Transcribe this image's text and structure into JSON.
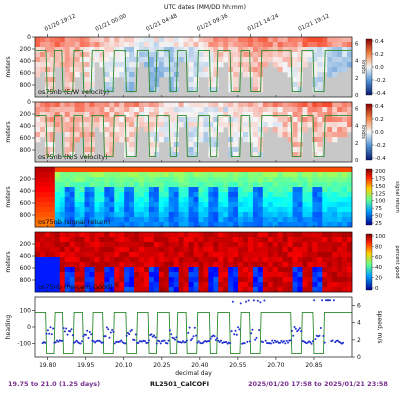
{
  "header": {
    "utc_label": "UTC dates (MM/DD hh:mm)"
  },
  "top_ticks": [
    "01/20 19:12",
    "01/21 00:00",
    "01/21 04:48",
    "01/21 09:36",
    "01/21 14:24",
    "01/21 19:12"
  ],
  "bottom_ticks": [
    "19.80",
    "19.95",
    "20.10",
    "20.25",
    "20.40",
    "20.55",
    "20.70",
    "20.85"
  ],
  "xlabel": "decimal day",
  "footer": {
    "left": "19.75 to 21.0 (1.25 days)",
    "center": "RL2501_CalCOFI",
    "right": "2025/01/20 17:58 to 2025/01/21 23:58"
  },
  "colors": {
    "speed_line": "#2a8a2a",
    "heading": "#1f2fd0",
    "footer_left": "#7a2f8f",
    "footer_right": "#7a2f8f",
    "no_data": "#c8c8c8"
  },
  "chart_data": [
    {
      "type": "heatmap",
      "panel_label": "os75nb (E/W velocity)",
      "ylabel": "meters",
      "y_ticks": [
        "0",
        "200",
        "400",
        "600",
        "800"
      ],
      "ylim": [
        1000,
        0
      ],
      "xlim": [
        19.75,
        21.0
      ],
      "colorbar": {
        "ticks": [
          "0.4",
          "0.2",
          "0.0",
          "-0.2",
          "-0.4"
        ],
        "range": [
          -0.4,
          0.4
        ],
        "colormap": "red-white-blue"
      },
      "overlay_axis": {
        "ticks": [
          "6",
          "4",
          "2",
          "0"
        ],
        "label": "knots"
      }
    },
    {
      "type": "heatmap",
      "panel_label": "os75nb (N/S velocity)",
      "ylabel": "meters",
      "y_ticks": [
        "0",
        "200",
        "400",
        "600",
        "800"
      ],
      "ylim": [
        1000,
        0
      ],
      "xlim": [
        19.75,
        21.0
      ],
      "colorbar": {
        "ticks": [
          "0.4",
          "0.2",
          "0.0",
          "-0.2",
          "-0.4"
        ],
        "range": [
          -0.4,
          0.4
        ],
        "colormap": "red-white-blue"
      },
      "overlay_axis": {
        "ticks": [
          "6",
          "4",
          "2",
          "0"
        ],
        "label": "knots"
      }
    },
    {
      "type": "heatmap",
      "panel_label": "os75nb (signal return)",
      "ylabel": "meters",
      "y_ticks": [
        "200",
        "400",
        "600",
        "800"
      ],
      "ylim": [
        1000,
        0
      ],
      "xlim": [
        19.75,
        21.0
      ],
      "colorbar": {
        "ticks": [
          "200",
          "175",
          "150",
          "125",
          "100",
          "75",
          "50",
          "25"
        ],
        "range": [
          0,
          200
        ],
        "label": "signal return",
        "colormap": "jet"
      }
    },
    {
      "type": "heatmap",
      "panel_label": "os75nb (Percent Good)",
      "ylabel": "meters",
      "y_ticks": [
        "200",
        "400",
        "600",
        "800"
      ],
      "ylim": [
        1000,
        0
      ],
      "xlim": [
        19.75,
        21.0
      ],
      "colorbar": {
        "ticks": [
          "100",
          "80",
          "60",
          "40",
          "20",
          "0"
        ],
        "range": [
          0,
          100
        ],
        "label": "percent good",
        "colormap": "jet"
      }
    },
    {
      "type": "scatter",
      "panel_label": "",
      "ylabel": "heading",
      "y2label": "speed, m/s",
      "y_ticks": [
        "100",
        "0",
        "-100"
      ],
      "ylim": [
        -180,
        180
      ],
      "y2_ticks": [
        "6",
        "4",
        "2",
        "0"
      ],
      "y2lim": [
        0,
        7
      ],
      "xlim": [
        19.75,
        21.0
      ],
      "series": [
        {
          "name": "heading",
          "mean_value": -90,
          "transit_value": 150
        },
        {
          "name": "speed",
          "stations": [
            [
              19.795,
              19.825
            ],
            [
              19.86,
              19.9
            ],
            [
              19.94,
              19.975
            ],
            [
              20.02,
              20.06
            ],
            [
              20.11,
              20.15
            ],
            [
              20.2,
              20.23
            ],
            [
              20.28,
              20.31
            ],
            [
              20.35,
              20.39
            ],
            [
              20.44,
              20.47
            ],
            [
              20.52,
              20.56
            ],
            [
              20.6,
              20.64
            ],
            [
              20.76,
              20.8
            ],
            [
              20.85,
              20.89
            ]
          ],
          "transit_speed": 5.2,
          "station_speed": 0.4
        }
      ]
    }
  ]
}
